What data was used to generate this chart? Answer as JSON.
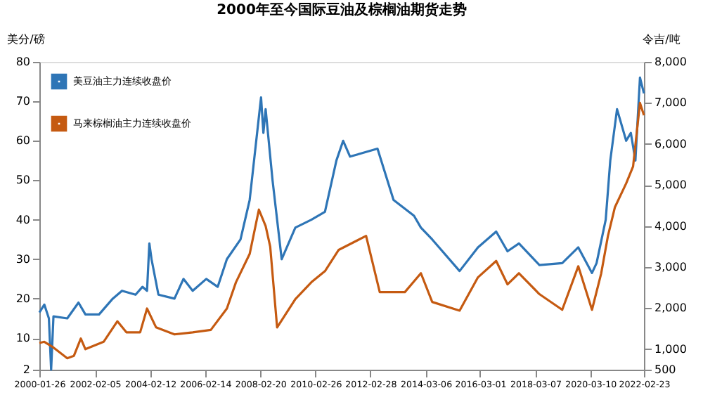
{
  "chart_data": {
    "type": "line",
    "title": "2000年至今国际豆油及棕榈油期货走势",
    "ylabel": "美分/磅",
    "y2label": "令吉/吨",
    "xlim": [
      "2000-01-26",
      "2022-02-23"
    ],
    "xticks": [
      "2000-01-26",
      "2002-02-05",
      "2004-02-12",
      "2006-02-14",
      "2008-02-20",
      "2010-02-26",
      "2012-02-28",
      "2014-03-06",
      "2016-03-01",
      "2018-03-07",
      "2020-03-10",
      "2022-02-23"
    ],
    "ylim": [
      2,
      80
    ],
    "yticks": [
      2,
      10,
      20,
      30,
      40,
      50,
      60,
      70,
      80
    ],
    "y2lim": [
      500,
      8000
    ],
    "y2ticks": [
      500,
      {
        "value": 1000,
        "label": "1,000"
      },
      {
        "value": 2000,
        "label": "2,000"
      },
      {
        "value": 3000,
        "label": "3,000"
      },
      {
        "value": 4000,
        "label": "4,000"
      },
      {
        "value": 5000,
        "label": "5,000"
      },
      {
        "value": 6000,
        "label": "6,000"
      },
      {
        "value": 7000,
        "label": "7,000"
      },
      {
        "value": 8000,
        "label": "8,000"
      }
    ],
    "grid": false,
    "legend": "top left",
    "marker": "none",
    "line_style": "solid",
    "series": [
      {
        "name": "美豆油主力连续收盘价",
        "color": "#2e75b6",
        "x": [
          "2000-01-26",
          "2000-04",
          "2000-06",
          "2000-07",
          "2000-08",
          "2001-02",
          "2001-07",
          "2001-10",
          "2002-04",
          "2002-10",
          "2003-02",
          "2003-08",
          "2003-11",
          "2004-01",
          "2004-02",
          "2004-03",
          "2004-06",
          "2005-01",
          "2005-05",
          "2005-09",
          "2006-03",
          "2006-08",
          "2006-12",
          "2007-06",
          "2007-10",
          "2008-03",
          "2008-04",
          "2008-05",
          "2008-08",
          "2008-12",
          "2009-06",
          "2010-01",
          "2010-07",
          "2010-12",
          "2011-03",
          "2011-06",
          "2012-06",
          "2013-01",
          "2013-10",
          "2014-01",
          "2014-06",
          "2015-06",
          "2016-02",
          "2016-10",
          "2017-03",
          "2017-08",
          "2018-05",
          "2019-03",
          "2019-10",
          "2020-04",
          "2020-06",
          "2020-10",
          "2020-12",
          "2021-03",
          "2021-07",
          "2021-09",
          "2021-11",
          "2022-01",
          "2022-02-23"
        ],
        "values": [
          16.5,
          18.5,
          15,
          2,
          15.5,
          15,
          19,
          16,
          16,
          20,
          22,
          21,
          23,
          22,
          34,
          30,
          21,
          20,
          25,
          22,
          25,
          23,
          30,
          35,
          45,
          71,
          62,
          68,
          50,
          30,
          38,
          40,
          42,
          55,
          60,
          56,
          58,
          45,
          41,
          38,
          35,
          27,
          33,
          37,
          32,
          34,
          28.5,
          29,
          33,
          26.5,
          29,
          40,
          55,
          68,
          60,
          62,
          55,
          76,
          72
        ]
      },
      {
        "name": "马来棕榈油主力连续收盘价",
        "color": "#c55a11",
        "axis": "y2",
        "x": [
          "2000-01-26",
          "2000-04",
          "2000-08",
          "2001-02",
          "2001-05",
          "2001-08",
          "2001-10",
          "2002-06",
          "2002-12",
          "2003-04",
          "2003-10",
          "2004-01",
          "2004-05",
          "2005-01",
          "2005-09",
          "2006-05",
          "2006-12",
          "2007-04",
          "2007-10",
          "2008-02",
          "2008-05",
          "2008-07",
          "2008-10",
          "2009-06",
          "2010-01",
          "2010-07",
          "2011-01",
          "2012-01",
          "2012-07",
          "2013-06",
          "2014-01",
          "2014-06",
          "2015-06",
          "2016-02",
          "2016-10",
          "2017-03",
          "2017-08",
          "2018-05",
          "2019-03",
          "2019-10",
          "2020-04",
          "2020-08",
          "2020-11",
          "2021-02",
          "2021-07",
          "2021-10",
          "2022-01",
          "2022-02-23"
        ],
        "values": [
          1150,
          1180,
          1040,
          780,
          840,
          1260,
          1000,
          1180,
          1680,
          1410,
          1410,
          1990,
          1530,
          1360,
          1410,
          1470,
          1990,
          2630,
          3320,
          4400,
          4000,
          3500,
          1530,
          2220,
          2630,
          2900,
          3420,
          3760,
          2390,
          2390,
          2850,
          2150,
          1940,
          2750,
          3150,
          2580,
          2850,
          2340,
          1960,
          3020,
          1960,
          2840,
          3770,
          4460,
          5040,
          5450,
          7000,
          6700
        ]
      }
    ]
  }
}
